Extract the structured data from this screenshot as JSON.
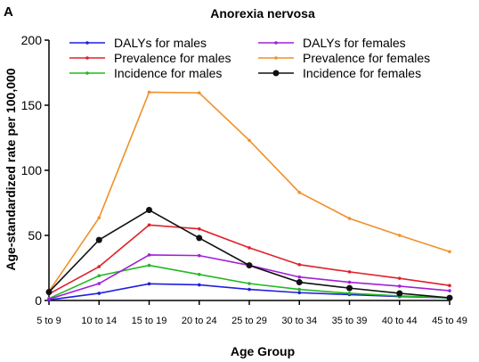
{
  "panel_label": "A",
  "chart_data": {
    "type": "line",
    "title": "Anorexia nervosa",
    "xlabel": "Age Group",
    "ylabel": "Age-standardized rate per 100,000",
    "ylim": [
      0,
      200
    ],
    "yticks": [
      0,
      50,
      100,
      150,
      200
    ],
    "categories": [
      "5 to 9",
      "10 to 14",
      "15 to 19",
      "20 to 24",
      "25 to 29",
      "30 to 34",
      "35 to 39",
      "40 to 44",
      "45 to 49"
    ],
    "grid": false,
    "legend_position": "top",
    "series": [
      {
        "name": "DALYs for males",
        "color": "#1f1fdc",
        "marker": "small",
        "values": [
          0.5,
          5.5,
          12.8,
          12.0,
          8.5,
          6.0,
          4.5,
          3.0,
          2.0
        ]
      },
      {
        "name": "Prevalence for males",
        "color": "#e0202a",
        "marker": "small",
        "values": [
          5.0,
          26.0,
          58.0,
          55.0,
          40.5,
          27.5,
          22.0,
          17.0,
          11.5
        ]
      },
      {
        "name": "Incidence for males",
        "color": "#22b822",
        "marker": "small",
        "values": [
          1.5,
          19.0,
          27.0,
          20.0,
          13.0,
          8.5,
          5.5,
          3.5,
          2.0
        ]
      },
      {
        "name": "DALYs for females",
        "color": "#a020d8",
        "marker": "small",
        "values": [
          1.0,
          13.0,
          35.0,
          34.5,
          27.0,
          18.0,
          14.0,
          11.0,
          7.5
        ]
      },
      {
        "name": "Prevalence for females",
        "color": "#f0902a",
        "marker": "small",
        "values": [
          7.0,
          63.5,
          160.0,
          159.5,
          123.0,
          83.0,
          63.0,
          50.0,
          37.5
        ]
      },
      {
        "name": "Incidence for females",
        "color": "#111111",
        "marker": "large",
        "values": [
          6.5,
          46.5,
          69.5,
          48.0,
          27.0,
          14.0,
          9.5,
          5.5,
          2.0
        ]
      }
    ]
  }
}
